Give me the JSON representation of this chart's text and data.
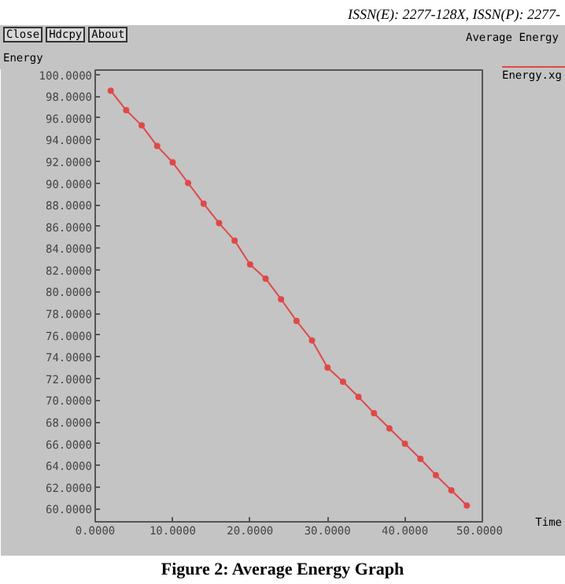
{
  "chart_data": {
    "type": "line",
    "title": "Average Energy",
    "xlabel": "Time",
    "ylabel": "Energy",
    "annotations": [
      "ISSN(E): 2277-128X, ISSN(P): 2277-",
      "Close",
      "Hdcpy",
      "About",
      "Figure 2: Average Energy Graph"
    ],
    "x": [
      2,
      4,
      6,
      8,
      10,
      12,
      14,
      16,
      18,
      20,
      22,
      24,
      26,
      28,
      30,
      32,
      34,
      36,
      38,
      40,
      42,
      44,
      46,
      48
    ],
    "series": [
      {
        "name": "Energy.xg",
        "color": "#e04848",
        "values": [
          98.5,
          96.7,
          95.3,
          93.4,
          91.9,
          90.0,
          88.1,
          86.3,
          84.7,
          82.5,
          81.2,
          79.3,
          77.3,
          75.5,
          73.0,
          71.7,
          70.3,
          68.8,
          67.4,
          66.0,
          64.6,
          63.1,
          61.7,
          60.3
        ]
      }
    ],
    "xlim": [
      0,
      50
    ],
    "ylim": [
      58.8,
      100.4
    ],
    "xticks": [
      {
        "value": 0,
        "label": "0.0000"
      },
      {
        "value": 10,
        "label": "10.0000"
      },
      {
        "value": 20,
        "label": "20.0000"
      },
      {
        "value": 30,
        "label": "30.0000"
      },
      {
        "value": 40,
        "label": "40.0000"
      },
      {
        "value": 50,
        "label": "50.0000"
      }
    ],
    "yticks": [
      {
        "value": 60,
        "label": "60.0000"
      },
      {
        "value": 62,
        "label": "62.0000"
      },
      {
        "value": 64,
        "label": "64.0000"
      },
      {
        "value": 66,
        "label": "66.0000"
      },
      {
        "value": 68,
        "label": "68.0000"
      },
      {
        "value": 70,
        "label": "70.0000"
      },
      {
        "value": 72,
        "label": "72.0000"
      },
      {
        "value": 74,
        "label": "74.0000"
      },
      {
        "value": 76,
        "label": "76.0000"
      },
      {
        "value": 78,
        "label": "78.0000"
      },
      {
        "value": 80,
        "label": "80.0000"
      },
      {
        "value": 82,
        "label": "82.0000"
      },
      {
        "value": 84,
        "label": "84.0000"
      },
      {
        "value": 86,
        "label": "86.0000"
      },
      {
        "value": 88,
        "label": "88.0000"
      },
      {
        "value": 90,
        "label": "90.0000"
      },
      {
        "value": 92,
        "label": "92.0000"
      },
      {
        "value": 94,
        "label": "94.0000"
      },
      {
        "value": 96,
        "label": "96.0000"
      },
      {
        "value": 98,
        "label": "98.0000"
      },
      {
        "value": 100,
        "label": "100.0000"
      }
    ],
    "grid": false,
    "marker": "circle",
    "line_style": "solid"
  }
}
